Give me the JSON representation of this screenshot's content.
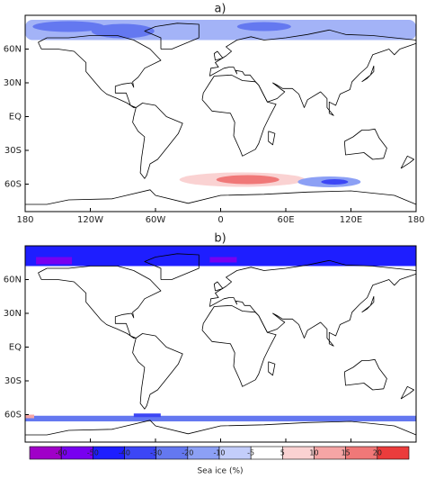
{
  "panels": [
    {
      "label": "a)"
    },
    {
      "label": "b)"
    }
  ],
  "x_ticks": [
    "180",
    "120W",
    "60W",
    "0",
    "60E",
    "120E",
    "180"
  ],
  "y_ticks": [
    "60N",
    "30N",
    "EQ",
    "30S",
    "60S"
  ],
  "colorbar": {
    "title": "Sea ice (%)",
    "levels": [
      -60,
      -50,
      -40,
      -30,
      -20,
      -10,
      -5,
      5,
      10,
      15,
      20
    ],
    "colors": [
      "#a000c8",
      "#7800f0",
      "#1e1eff",
      "#3c46f5",
      "#6478f0",
      "#8ca0f5",
      "#c3cdfa",
      "#ffffff",
      "#fad2d2",
      "#f5a5a5",
      "#f07878",
      "#eb3c3c"
    ]
  }
}
